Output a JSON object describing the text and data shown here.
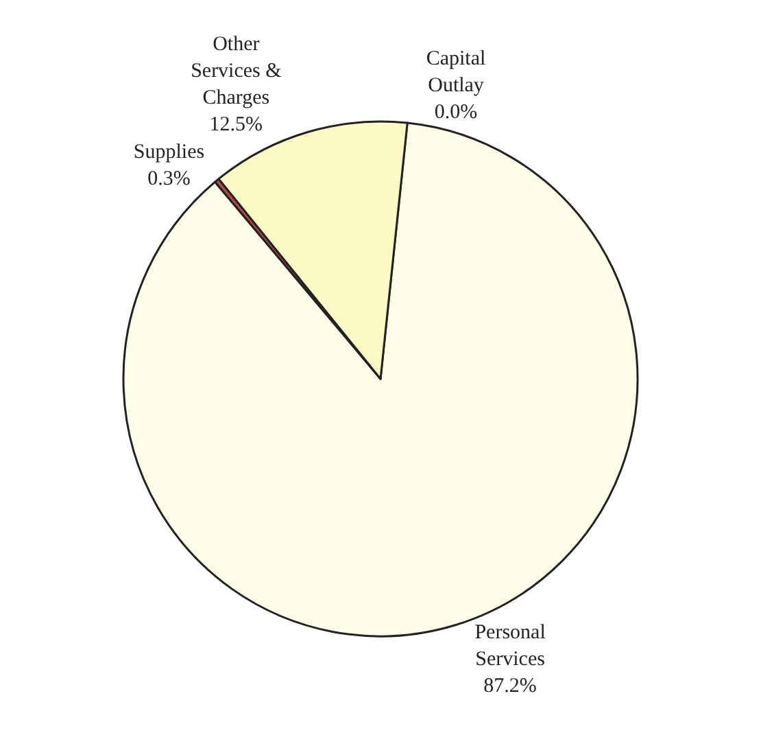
{
  "chart_data": {
    "type": "pie",
    "categories": [
      "Personal Services",
      "Supplies",
      "Other Services & Charges",
      "Capital Outlay"
    ],
    "values": [
      87.2,
      0.3,
      12.5,
      0.0
    ],
    "value_labels": [
      "87.2%",
      "0.3%",
      "12.5%",
      "0.0%"
    ],
    "colors": [
      "#fefde8",
      "#b84848",
      "#fbfac4",
      "#e8e6a8"
    ],
    "legend": false
  }
}
